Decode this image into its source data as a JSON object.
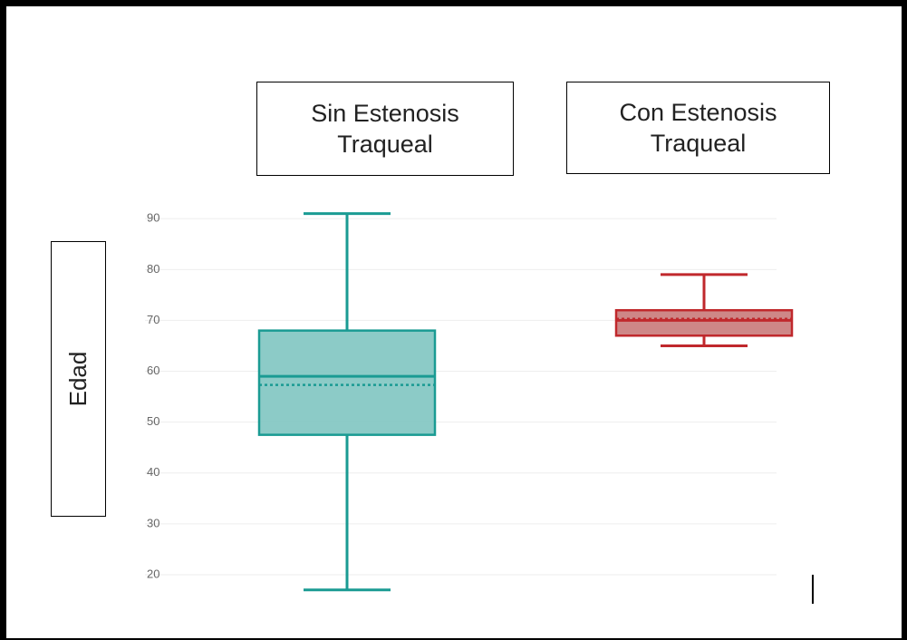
{
  "chart_data": {
    "type": "box",
    "categories": [
      "Sin Estenosis Traqueal",
      "Con Estenosis Traqueal"
    ],
    "y_label": "Edad",
    "boxes": [
      {
        "whisker_low": 17,
        "q1": 47.5,
        "median": 59,
        "mean": 57.3,
        "q3": 68,
        "whisker_high": 91,
        "color": "#1a9b93",
        "fill": "#7fc5c1"
      },
      {
        "whisker_low": 65,
        "q1": 67,
        "median": 70,
        "mean": 70.3,
        "q3": 72,
        "whisker_high": 79,
        "color": "#c0282c",
        "fill": "#c97a7a"
      }
    ],
    "ylim": [
      15,
      92
    ],
    "yticks": [
      20,
      30,
      40,
      50,
      60,
      70,
      80,
      90
    ],
    "grid": true
  }
}
